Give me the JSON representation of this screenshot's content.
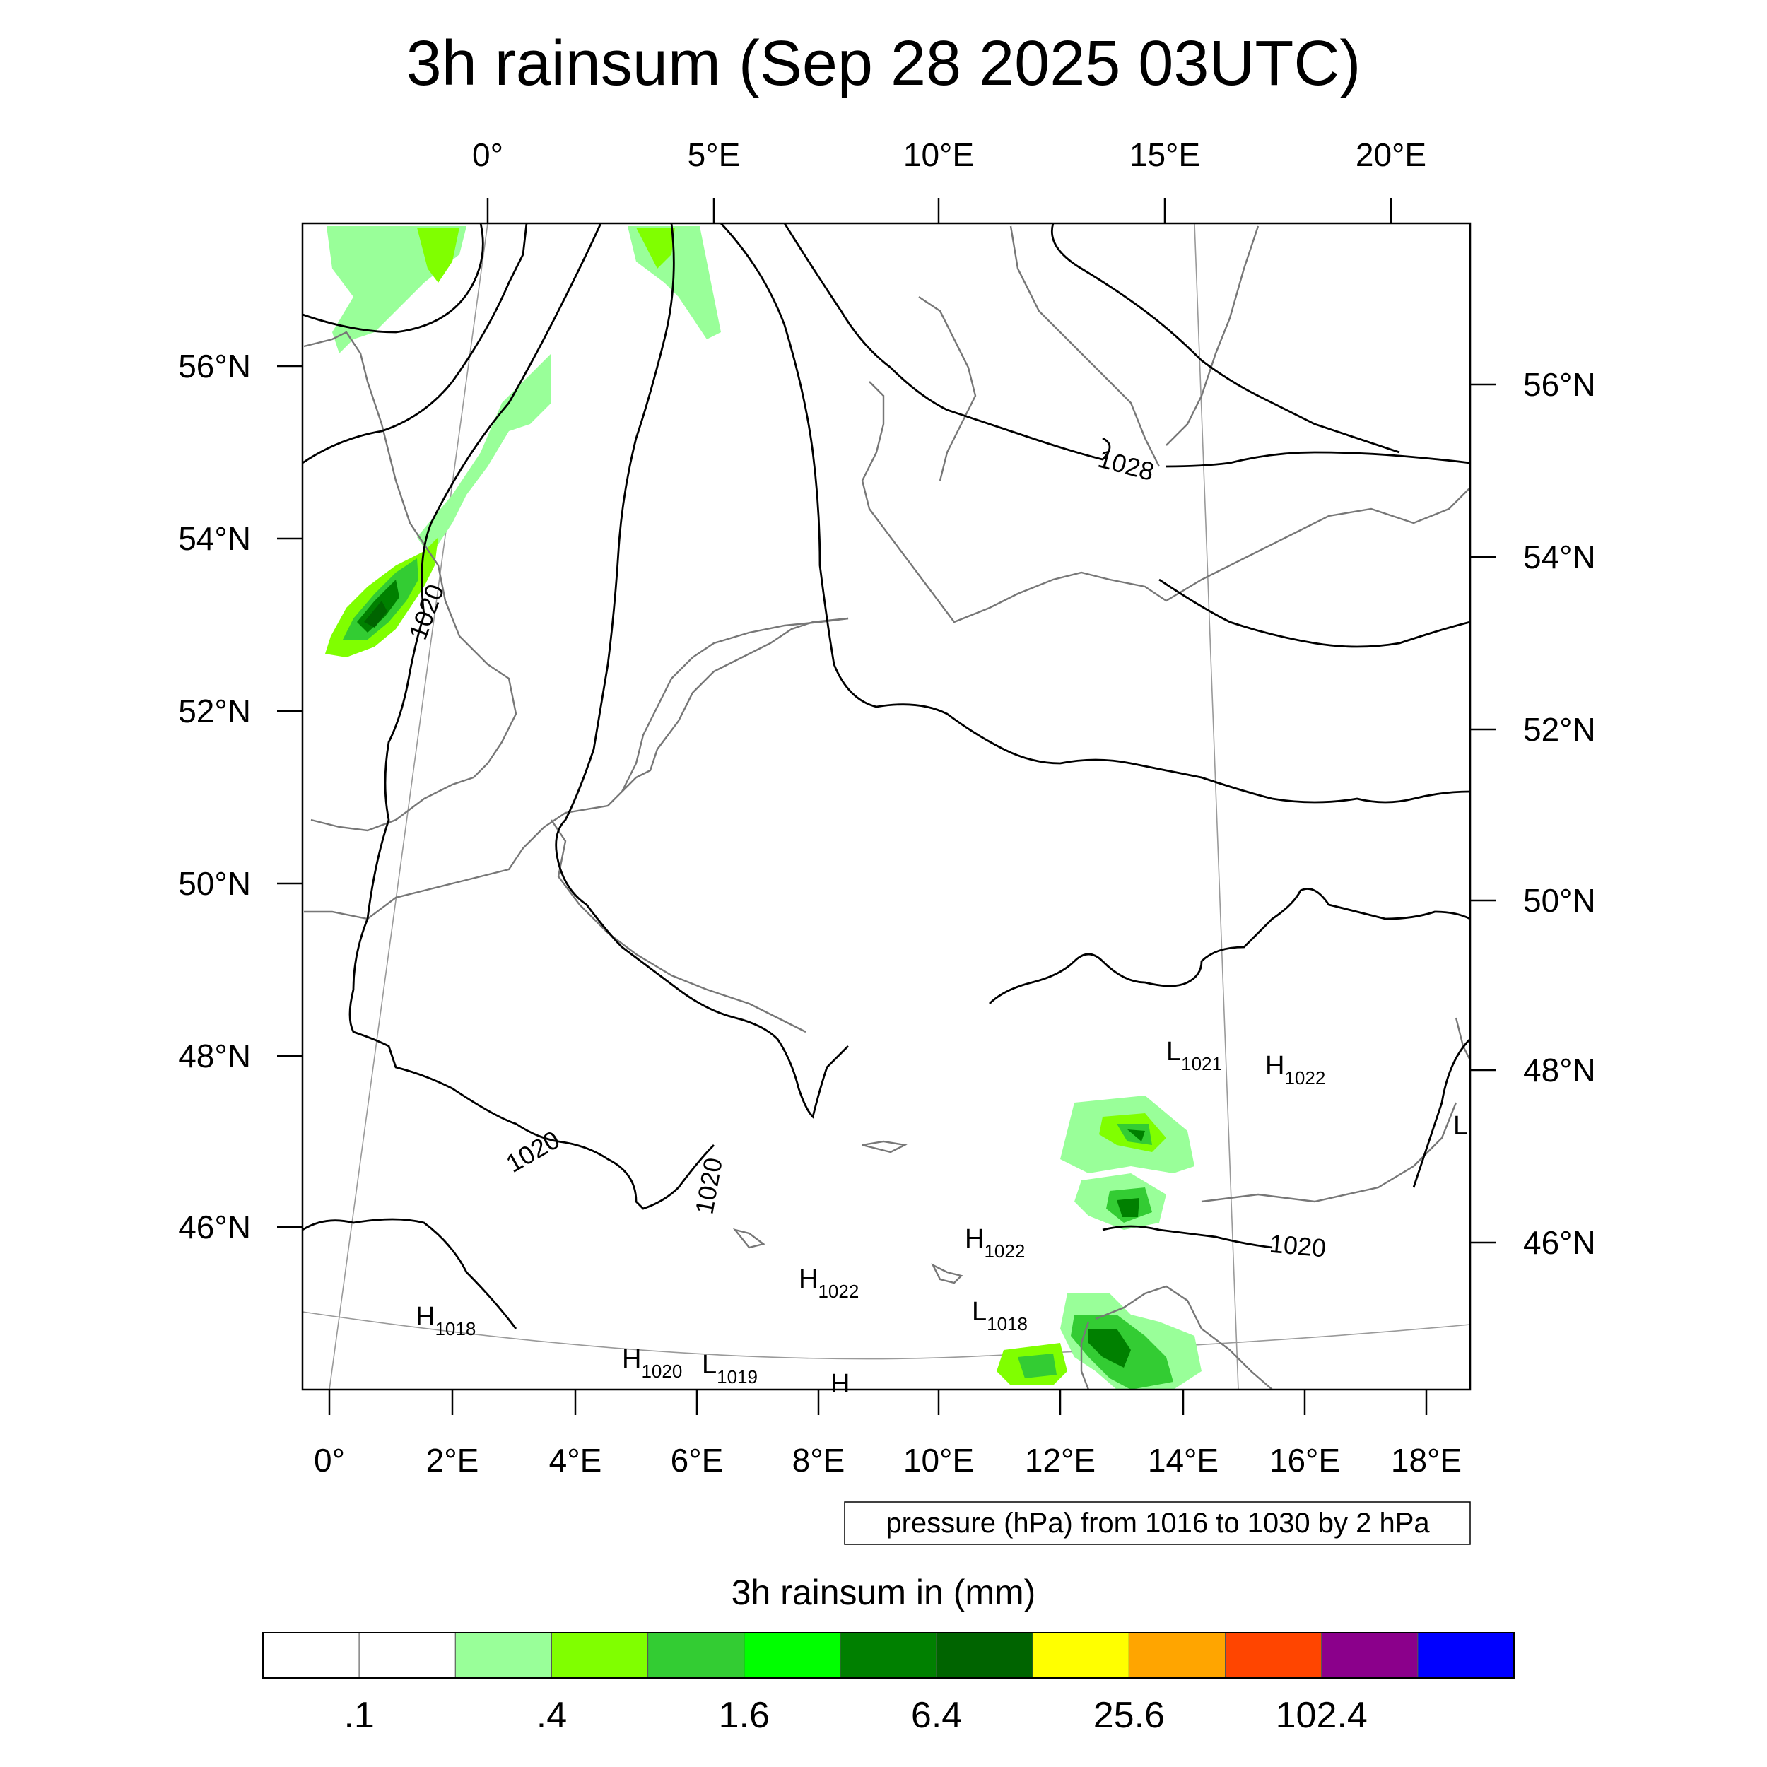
{
  "title": "3h rainsum (Sep 28 2025 03UTC)",
  "top_lon_labels": [
    "0°",
    "5°E",
    "10°E",
    "15°E",
    "20°E"
  ],
  "bottom_lon_labels": [
    "0°",
    "2°E",
    "4°E",
    "6°E",
    "8°E",
    "10°E",
    "12°E",
    "14°E",
    "16°E",
    "18°E"
  ],
  "left_lat_labels": [
    "56°N",
    "54°N",
    "52°N",
    "50°N",
    "48°N",
    "46°N"
  ],
  "right_lat_labels": [
    "56°N",
    "54°N",
    "52°N",
    "50°N",
    "48°N",
    "46°N"
  ],
  "contour_labels": [
    "1020",
    "1028",
    "1020",
    "1020",
    "1020"
  ],
  "pressure_centers": [
    {
      "type": "L",
      "value": "1021"
    },
    {
      "type": "H",
      "value": "1022"
    },
    {
      "type": "L",
      "value": ""
    },
    {
      "type": "H",
      "value": "1022"
    },
    {
      "type": "H",
      "value": "1022"
    },
    {
      "type": "L",
      "value": "1018"
    },
    {
      "type": "H",
      "value": "1018"
    },
    {
      "type": "H",
      "value": "1020"
    },
    {
      "type": "L",
      "value": "1019"
    },
    {
      "type": "H",
      "value": ""
    }
  ],
  "contour_note": "pressure (hPa) from 1016 to 1030 by 2 hPa",
  "colorbar": {
    "title": "3h rainsum in (mm)",
    "colors": [
      "#ffffff",
      "#ffffff",
      "#99ff99",
      "#80ff00",
      "#33cc33",
      "#00ff00",
      "#008000",
      "#006400",
      "#ffff00",
      "#ffa500",
      "#ff4500",
      "#8b008b",
      "#0000ff"
    ],
    "labels": [
      ".1",
      ".4",
      "1.6",
      "6.4",
      "25.6",
      "102.4"
    ]
  }
}
